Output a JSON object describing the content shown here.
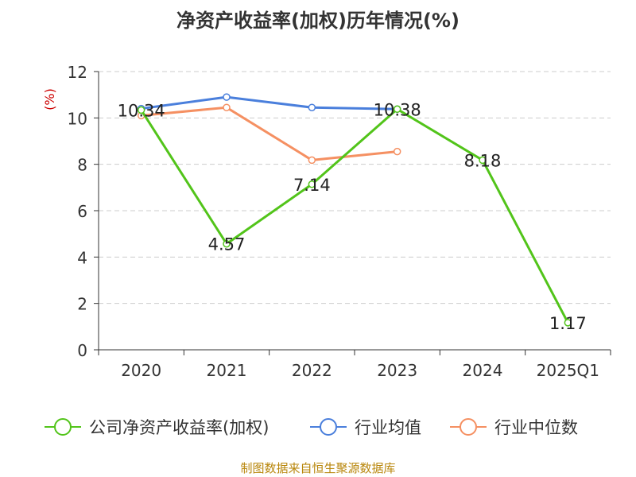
{
  "chart_data": {
    "type": "line",
    "title": "净资产收益率(加权)历年情况(%)",
    "ylabel": "(%)",
    "categories": [
      "2020",
      "2021",
      "2022",
      "2023",
      "2024",
      "2025Q1"
    ],
    "ylim": [
      0,
      12
    ],
    "yticks": [
      0,
      2,
      4,
      6,
      8,
      10,
      12
    ],
    "grid": true,
    "legend_position": "bottom",
    "series": [
      {
        "name": "公司净资产收益率(加权)",
        "color": "#52c41a",
        "values": [
          10.34,
          4.57,
          7.14,
          10.38,
          8.18,
          1.17
        ],
        "labels": [
          "10.34",
          "4.57",
          "7.14",
          "10.38",
          "8.18",
          "1.17"
        ]
      },
      {
        "name": "行业均值",
        "color": "#4a7fdc",
        "values": [
          10.4,
          10.9,
          10.45,
          10.38,
          null,
          null
        ]
      },
      {
        "name": "行业中位数",
        "color": "#f59062",
        "values": [
          10.1,
          10.45,
          8.18,
          8.55,
          null,
          null
        ]
      }
    ],
    "source": "制图数据来自恒生聚源数据库"
  }
}
